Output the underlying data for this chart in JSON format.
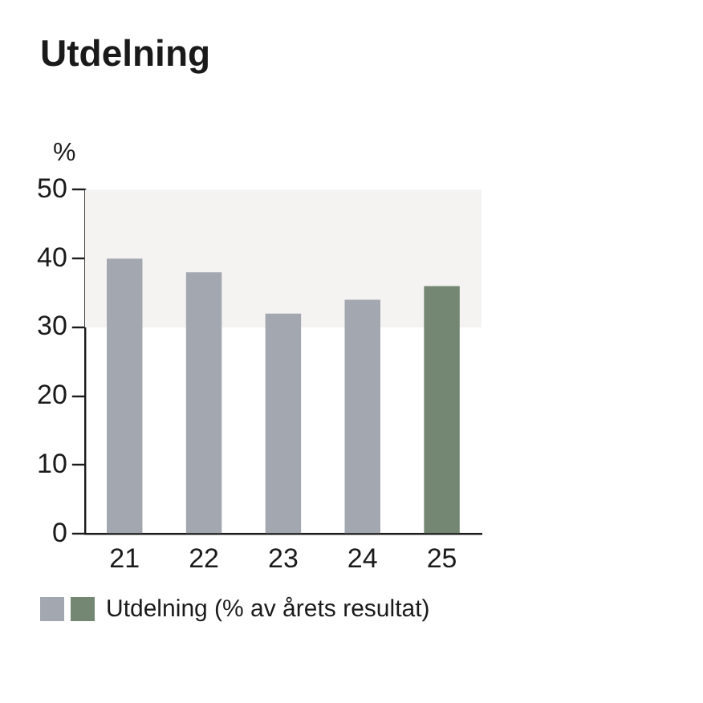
{
  "chart_data": {
    "type": "bar",
    "title": "Utdelning",
    "ylabel": "%",
    "categories": [
      "21",
      "22",
      "23",
      "24",
      "25"
    ],
    "series": [
      {
        "name": "Utdelning (% av årets resultat)",
        "colors": [
          "#a3a8b0",
          "#a3a8b0",
          "#a3a8b0",
          "#a3a8b0",
          "#748773"
        ],
        "values": [
          40,
          38,
          32,
          34,
          36
        ]
      }
    ],
    "ylim": [
      0,
      50
    ],
    "yticks": [
      0,
      10,
      20,
      30,
      40,
      50
    ],
    "grid": false,
    "legend": "bottom",
    "bands": [
      {
        "axis": "y",
        "from": 30,
        "to": 50,
        "color": "#f5f3f2"
      }
    ]
  }
}
